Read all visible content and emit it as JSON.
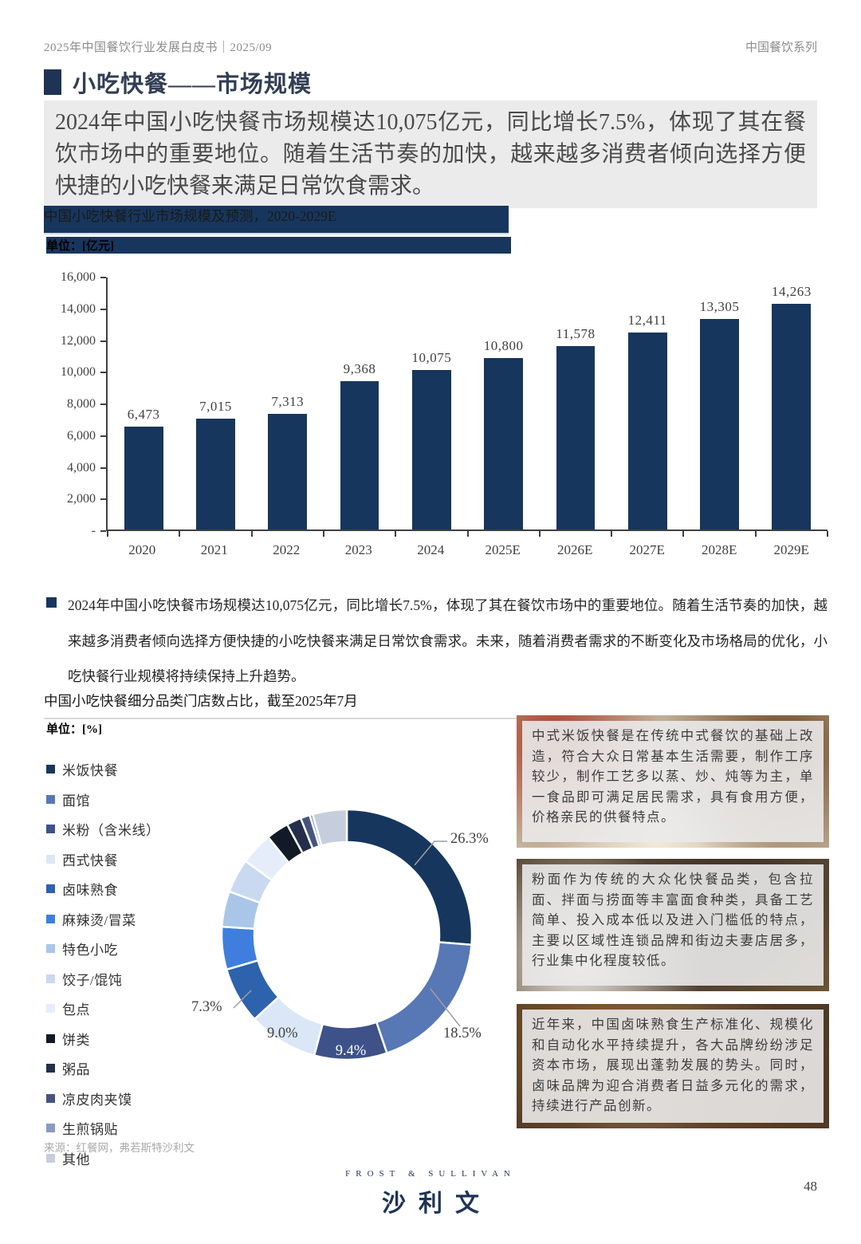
{
  "header": {
    "left": "2025年中国餐饮行业发展白皮书｜2025/09",
    "right": "中国餐饮系列"
  },
  "title": {
    "text": "小吃快餐——市场规模"
  },
  "highlight": {
    "text": "2024年中国小吃快餐市场规模达10,075亿元，同比增长7.5%，体现了其在餐饮市场中的重要地位。随着生活节奏的加快，越来越多消费者倾向选择方便快捷的小吃快餐来满足日常饮食需求。"
  },
  "bar_section": {
    "title": "中国小吃快餐行业市场规模及预测，2020-2029E",
    "unit": "单位：[亿元]"
  },
  "pie_section": {
    "title": "中国小吃快餐细分品类门店数占比，截至2025年7月",
    "unit": "单位：[%]"
  },
  "chart_data": [
    {
      "type": "bar",
      "title": "中国小吃快餐行业市场规模及预测，2020-2029E",
      "ylabel": "亿元",
      "categories": [
        "2020",
        "2021",
        "2022",
        "2023",
        "2024",
        "2025E",
        "2026E",
        "2027E",
        "2028E",
        "2029E"
      ],
      "values": [
        6473,
        7015,
        7313,
        9368,
        10075,
        10800,
        11578,
        12411,
        13305,
        14263
      ],
      "value_labels": [
        "6,473",
        "7,015",
        "7,313",
        "9,368",
        "10,075",
        "10,800",
        "11,578",
        "12,411",
        "13,305",
        "14,263"
      ],
      "ylim": [
        0,
        16000
      ],
      "y_ticks": [
        "16,000",
        "14,000",
        "12,000",
        "10,000",
        "8,000",
        "6,000",
        "4,000",
        "2,000",
        "-"
      ],
      "grid": false,
      "bar_color": "#17365D"
    },
    {
      "type": "pie",
      "donut": true,
      "title": "中国小吃快餐细分品类门店数占比，截至2025年7月",
      "unit": "%",
      "start_angle_deg": 0,
      "clockwise": true,
      "legend_position": "left",
      "slices": [
        {
          "name": "米饭快餐",
          "value": 26.3,
          "label": "26.3%",
          "color": "#17365D"
        },
        {
          "name": "面馆",
          "value": 18.5,
          "label": "18.5%",
          "color": "#5877B5"
        },
        {
          "name": "米粉（含米线）",
          "value": 9.4,
          "label": "9.4%",
          "color": "#3E5189"
        },
        {
          "name": "西式快餐",
          "value": 9.0,
          "label": "9.0%",
          "color": "#DBE7F6"
        },
        {
          "name": "卤味熟食",
          "value": 7.3,
          "label": "7.3%",
          "color": "#2D62AD"
        },
        {
          "name": "麻辣烫/冒菜",
          "value": 5.5,
          "color": "#3F7EDE"
        },
        {
          "name": "特色小吃",
          "value": 4.6,
          "color": "#A9C6E8"
        },
        {
          "name": "饺子/馄饨",
          "value": 4.4,
          "color": "#C8D9F0"
        },
        {
          "name": "包点",
          "value": 4.2,
          "color": "#E4EDF9"
        },
        {
          "name": "饼类",
          "value": 2.9,
          "color": "#131A27"
        },
        {
          "name": "粥品",
          "value": 1.9,
          "color": "#232F4A"
        },
        {
          "name": "凉皮肉夹馍",
          "value": 1.2,
          "color": "#46547F"
        },
        {
          "name": "生煎锅贴",
          "value": 0.4,
          "color": "#8A9AC2"
        },
        {
          "name": "其他",
          "value": 4.4,
          "color": "#C6CEDE"
        }
      ]
    }
  ],
  "bullet": {
    "text": "2024年中国小吃快餐市场规模达10,075亿元，同比增长7.5%，体现了其在餐饮市场中的重要地位。随着生活节奏的加快，越来越多消费者倾向选择方便快捷的小吃快餐来满足日常饮食需求。未来，随着消费者需求的不断变化及市场格局的优化，小吃快餐行业规模将持续保持上升趋势。"
  },
  "info_boxes": [
    {
      "text": "中式米饭快餐是在传统中式餐饮的基础上改造，符合大众日常基本生活需要，制作工序较少，制作工艺多以蒸、炒、炖等为主，单一食品即可满足居民需求，具有食用方便，价格亲民的供餐特点。"
    },
    {
      "text": "粉面作为传统的大众化快餐品类，包含拉面、拌面与捞面等丰富面食种类，具备工艺简单、投入成本低以及进入门槛低的特点，主要以区域性连锁品牌和街边夫妻店居多，行业集中化程度较低。"
    },
    {
      "text": "近年来，中国卤味熟食生产标准化、规模化和自动化水平持续提升，各大品牌纷纷涉足资本市场，展现出蓬勃发展的势头。同时，卤味品牌为迎合消费者日益多元化的需求，持续进行产品创新。"
    }
  ],
  "source": {
    "text": "来源：红餐网，弗若斯特沙利文"
  },
  "footer": {
    "logo_en": "FROST & SULLIVAN",
    "logo_cn": "沙利文",
    "page": "48"
  }
}
